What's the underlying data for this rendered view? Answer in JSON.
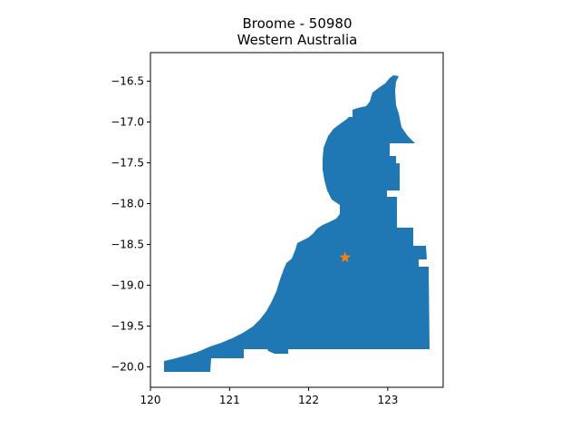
{
  "map": {
    "title_line1": "Broome - 50980",
    "title_line2": "Western Australia",
    "region_color": "#1f77b4",
    "marker_color": "#ff7f0e",
    "marker_icon": "star-marker-icon",
    "marker_lon": 122.46,
    "marker_lat": -18.66,
    "x_range": [
      120.0,
      123.7
    ],
    "y_range": [
      -20.25,
      -16.15
    ],
    "x_ticks": [
      {
        "value": 120,
        "label": "120"
      },
      {
        "value": 121,
        "label": "121"
      },
      {
        "value": 122,
        "label": "122"
      },
      {
        "value": 123,
        "label": "123"
      }
    ],
    "y_ticks": [
      {
        "value": -16.5,
        "label": "−16.5"
      },
      {
        "value": -17.0,
        "label": "−17.0"
      },
      {
        "value": -17.5,
        "label": "−17.5"
      },
      {
        "value": -18.0,
        "label": "−18.0"
      },
      {
        "value": -18.5,
        "label": "−18.5"
      },
      {
        "value": -19.0,
        "label": "−19.0"
      },
      {
        "value": -19.5,
        "label": "−19.5"
      },
      {
        "value": -20.0,
        "label": "−20.0"
      }
    ]
  }
}
